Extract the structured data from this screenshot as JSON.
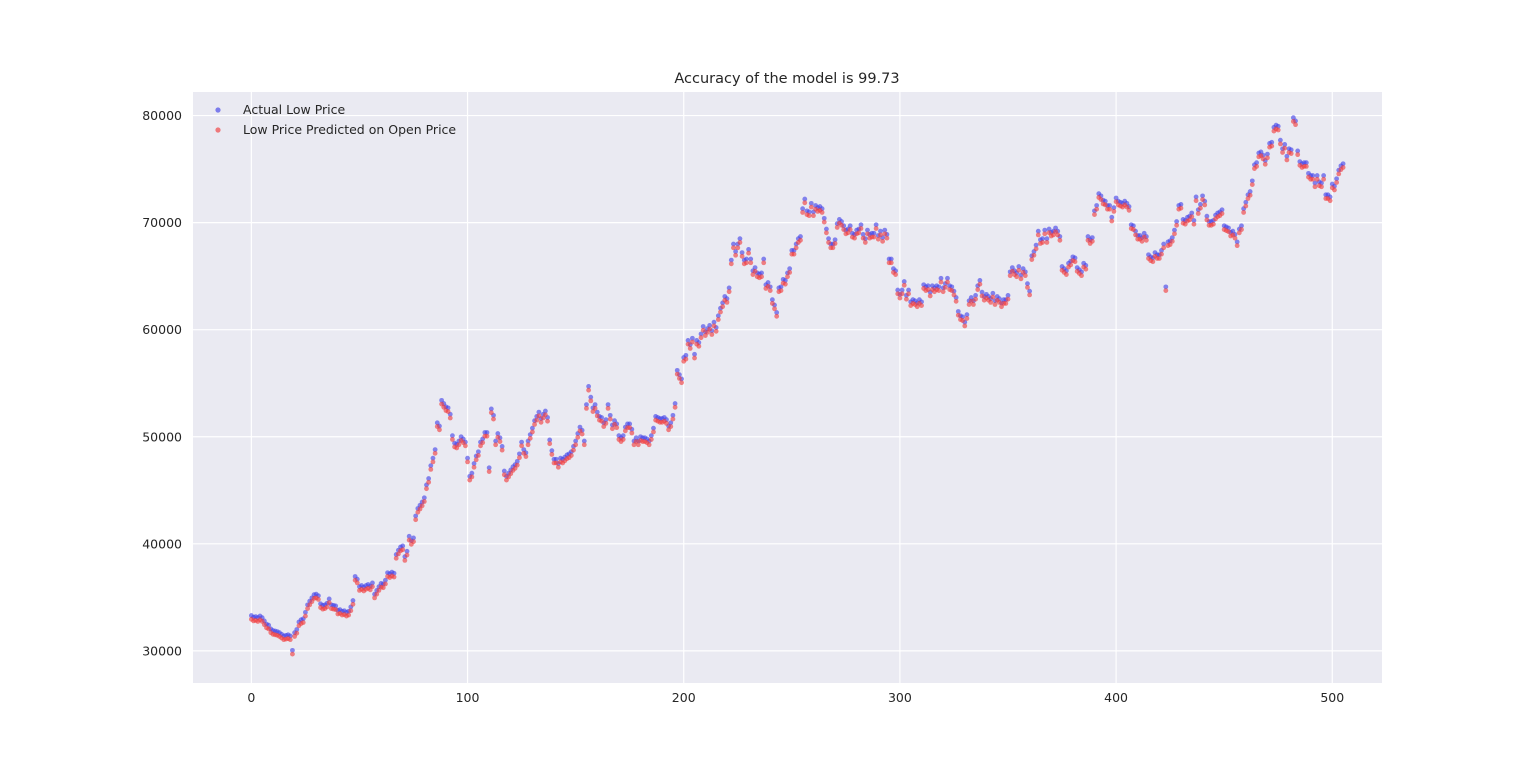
{
  "chart_data": {
    "type": "scatter",
    "title": "Accuracy of the model is 99.73",
    "xlabel": "",
    "ylabel": "",
    "xlim": [
      -27,
      523
    ],
    "ylim": [
      27000,
      82200
    ],
    "x_ticks": [
      0,
      100,
      200,
      300,
      400,
      500
    ],
    "y_ticks": [
      30000,
      40000,
      50000,
      60000,
      70000,
      80000
    ],
    "grid": true,
    "legend_position": "top-left",
    "style": {
      "background": "#eaeaf2",
      "grid_color": "#ffffff",
      "actual_color": "#4040e8",
      "predicted_color": "#f03a3a"
    },
    "series": [
      {
        "name": "Actual Low Price",
        "x_step": 1,
        "values": [
          33300,
          33150,
          33200,
          33100,
          33250,
          33100,
          32800,
          32500,
          32400,
          32050,
          31900,
          31850,
          31800,
          31700,
          31550,
          31400,
          31450,
          31500,
          31400,
          30050,
          31700,
          32000,
          32700,
          32900,
          33000,
          33600,
          34300,
          34650,
          34950,
          35250,
          35300,
          35150,
          34400,
          34250,
          34300,
          34450,
          34850,
          34300,
          34250,
          34200,
          33800,
          33850,
          33700,
          33750,
          33600,
          33700,
          34100,
          34700,
          36950,
          36700,
          36000,
          36100,
          35950,
          36100,
          36200,
          36050,
          36350,
          35300,
          35650,
          36000,
          36300,
          36250,
          36600,
          37300,
          37200,
          37350,
          37250,
          39000,
          39400,
          39700,
          39800,
          38800,
          39300,
          40700,
          40300,
          40550,
          42600,
          43300,
          43600,
          43900,
          44300,
          45500,
          46100,
          47300,
          48000,
          48800,
          51300,
          51000,
          53400,
          53100,
          52800,
          52700,
          52100,
          50100,
          49400,
          49300,
          49600,
          50000,
          49800,
          49500,
          48000,
          46300,
          46600,
          47500,
          48200,
          48600,
          49500,
          49800,
          50400,
          50400,
          47100,
          52600,
          52000,
          49600,
          50300,
          49900,
          49100,
          46800,
          46300,
          46600,
          46900,
          47200,
          47400,
          47700,
          48400,
          49500,
          48800,
          48500,
          49600,
          50200,
          50800,
          51500,
          51900,
          52300,
          51700,
          52100,
          52400,
          51800,
          49700,
          48700,
          47900,
          47900,
          47500,
          48000,
          47900,
          48100,
          48300,
          48400,
          48600,
          49100,
          49600,
          50300,
          50900,
          50600,
          49600,
          53000,
          54700,
          53700,
          52700,
          53000,
          52300,
          51900,
          51800,
          51300,
          51600,
          53000,
          52000,
          51100,
          51500,
          51200,
          50100,
          49900,
          50100,
          50900,
          51200,
          51200,
          50700,
          49600,
          49900,
          49600,
          50000,
          49900,
          49900,
          49800,
          49600,
          50100,
          50800,
          51900,
          51800,
          51700,
          51700,
          51800,
          51600,
          51000,
          51300,
          52000,
          53100,
          56200,
          55800,
          55400,
          57400,
          57600,
          59000,
          58600,
          59200,
          57700,
          59000,
          58800,
          59600,
          60300,
          59800,
          60100,
          60400,
          59900,
          60700,
          60200,
          61300,
          62000,
          62500,
          63100,
          62900,
          63900,
          66500,
          68000,
          67300,
          68000,
          68500,
          67200,
          66500,
          66600,
          67500,
          66600,
          65500,
          65800,
          65300,
          65200,
          65300,
          66600,
          64200,
          64400,
          64000,
          62800,
          62300,
          61600,
          63900,
          64000,
          64700,
          64600,
          65300,
          65700,
          67400,
          67400,
          68000,
          68500,
          68700,
          71300,
          72200,
          71100,
          71000,
          71800,
          71000,
          71600,
          71400,
          71500,
          71300,
          70400,
          69400,
          68500,
          68000,
          68000,
          68400,
          69900,
          70300,
          70100,
          69700,
          69300,
          69400,
          69700,
          69000,
          68900,
          69300,
          69400,
          69800,
          68900,
          68500,
          69300,
          68900,
          69000,
          69000,
          69800,
          68800,
          69200,
          68600,
          69300,
          68900,
          66600,
          66600,
          65700,
          65500,
          63700,
          63300,
          63700,
          64500,
          63200,
          63700,
          62600,
          62800,
          62700,
          62500,
          62800,
          62600,
          64200,
          64000,
          64100,
          63500,
          64100,
          63900,
          64100,
          64000,
          64800,
          63900,
          64300,
          64800,
          64100,
          64000,
          63600,
          63000,
          61700,
          61300,
          61200,
          60700,
          61400,
          62700,
          63000,
          62700,
          63200,
          64100,
          64600,
          63500,
          63100,
          63300,
          63100,
          62900,
          63400,
          62700,
          63100,
          62900,
          62500,
          62800,
          62800,
          63200,
          65400,
          65800,
          65500,
          65300,
          65900,
          65100,
          65700,
          65400,
          64300,
          63600,
          66900,
          67300,
          67900,
          69200,
          68400,
          68500,
          69300,
          68500,
          69400,
          69100,
          69200,
          69500,
          69200,
          68700,
          65900,
          65700,
          65500,
          66200,
          66400,
          66800,
          66700,
          65800,
          65600,
          65400,
          66200,
          66000,
          68700,
          68400,
          68600,
          71100,
          71600,
          72700,
          72500,
          72100,
          72000,
          71600,
          71600,
          70500,
          71400,
          72300,
          72000,
          71900,
          71800,
          72000,
          71800,
          71500,
          69800,
          69700,
          69200,
          68800,
          68800,
          68600,
          69000,
          68700,
          67000,
          66800,
          66700,
          67200,
          67000,
          67000,
          67400,
          68000,
          64000,
          68200,
          68300,
          68600,
          69300,
          70100,
          71600,
          71700,
          70300,
          70200,
          70500,
          70600,
          70900,
          70200,
          72400,
          71200,
          71700,
          72500,
          72000,
          70600,
          70100,
          70100,
          70200,
          70700,
          70900,
          71000,
          71200,
          69700,
          69600,
          69500,
          69100,
          69200,
          68900,
          68200,
          69400,
          69700,
          71300,
          71900,
          72600,
          72900,
          73900,
          75400,
          75600,
          76500,
          76600,
          76300,
          75800,
          76400,
          77400,
          77500,
          78900,
          79100,
          79000,
          77700,
          76900,
          77300,
          76200,
          76900,
          76800,
          79800,
          79500,
          76700,
          75700,
          75500,
          75600,
          75600,
          74600,
          74400,
          74400,
          73700,
          74400,
          73800,
          73700,
          74400,
          72600,
          72600,
          72400,
          73600,
          73400,
          74100,
          74900,
          75300,
          75500
        ]
      },
      {
        "name": "Low Price Predicted on Open Price",
        "x_step": 1,
        "values": [
          32950,
          32800,
          32850,
          32750,
          32900,
          32750,
          32450,
          32150,
          32050,
          31700,
          31550,
          31500,
          31450,
          31350,
          31200,
          31050,
          31100,
          31150,
          31050,
          29700,
          31350,
          31650,
          32350,
          32550,
          32650,
          33250,
          33950,
          34300,
          34600,
          34900,
          34950,
          34800,
          34050,
          33900,
          33950,
          34100,
          34500,
          33950,
          33900,
          33850,
          33450,
          33500,
          33350,
          33400,
          33250,
          33350,
          33750,
          34350,
          36600,
          36350,
          35650,
          35750,
          35600,
          35750,
          35850,
          35700,
          36000,
          34950,
          35300,
          35650,
          35950,
          35900,
          36250,
          36950,
          36850,
          37000,
          36900,
          38650,
          39050,
          39350,
          39450,
          38450,
          38950,
          40350,
          39950,
          40200,
          42250,
          42950,
          43250,
          43550,
          43950,
          45150,
          45750,
          46950,
          47650,
          48450,
          50950,
          50650,
          53050,
          52750,
          52450,
          52350,
          51750,
          49750,
          49050,
          48950,
          49250,
          49650,
          49450,
          49150,
          47650,
          45950,
          46250,
          47150,
          47850,
          48250,
          49150,
          49450,
          50050,
          50050,
          46750,
          52250,
          51650,
          49250,
          49950,
          49550,
          48750,
          46450,
          45950,
          46250,
          46550,
          46850,
          47050,
          47350,
          48050,
          49150,
          48450,
          48150,
          49250,
          49850,
          50450,
          51150,
          51550,
          51950,
          51350,
          51750,
          52050,
          51450,
          49350,
          48350,
          47550,
          47550,
          47150,
          47650,
          47550,
          47750,
          47950,
          48050,
          48250,
          48750,
          49250,
          49950,
          50550,
          50250,
          49250,
          52650,
          54350,
          53350,
          52350,
          52650,
          51950,
          51550,
          51450,
          50950,
          51250,
          52650,
          51650,
          50750,
          51150,
          50850,
          49750,
          49550,
          49750,
          50550,
          50850,
          50850,
          50350,
          49250,
          49550,
          49250,
          49650,
          49550,
          49550,
          49450,
          49250,
          49750,
          50450,
          51550,
          51450,
          51350,
          51350,
          51450,
          51250,
          50650,
          50950,
          51650,
          52750,
          55850,
          55450,
          55050,
          57050,
          57250,
          58650,
          58250,
          58850,
          57350,
          58650,
          58450,
          59250,
          59950,
          59450,
          59750,
          60050,
          59550,
          60350,
          59850,
          60950,
          61650,
          62150,
          62750,
          62550,
          63550,
          66150,
          67650,
          66950,
          67650,
          68150,
          66850,
          66150,
          66250,
          67150,
          66250,
          65150,
          65450,
          64950,
          64850,
          64950,
          66250,
          63850,
          64050,
          63650,
          62450,
          61950,
          61250,
          63550,
          63650,
          64350,
          64250,
          64950,
          65350,
          67050,
          67050,
          67650,
          68150,
          68350,
          70950,
          71850,
          70750,
          70650,
          71450,
          70650,
          71250,
          71050,
          71150,
          70950,
          70050,
          69050,
          68150,
          67650,
          67650,
          68050,
          69550,
          69950,
          69750,
          69350,
          68950,
          69050,
          69350,
          68650,
          68550,
          68950,
          69050,
          69450,
          68550,
          68150,
          68950,
          68550,
          68650,
          68650,
          69450,
          68450,
          68850,
          68250,
          68950,
          68550,
          66250,
          66250,
          65350,
          65150,
          63350,
          62950,
          63350,
          64150,
          62850,
          63350,
          62250,
          62450,
          62350,
          62150,
          62450,
          62250,
          63850,
          63650,
          63750,
          63150,
          63750,
          63550,
          63750,
          63650,
          64450,
          63550,
          63950,
          64450,
          63750,
          63650,
          63250,
          62650,
          61350,
          60950,
          60850,
          60350,
          61050,
          62350,
          62650,
          62350,
          62850,
          63750,
          64250,
          63150,
          62750,
          62950,
          62750,
          62550,
          63050,
          62350,
          62750,
          62550,
          62150,
          62450,
          62450,
          62850,
          65050,
          65450,
          65150,
          64950,
          65550,
          64750,
          65350,
          65050,
          63950,
          63250,
          66550,
          66950,
          67550,
          68850,
          68050,
          68150,
          68950,
          68150,
          69050,
          68750,
          68850,
          69150,
          68850,
          68350,
          65550,
          65350,
          65150,
          65850,
          66050,
          66450,
          66350,
          65450,
          65250,
          65050,
          65850,
          65650,
          68350,
          68050,
          68250,
          70750,
          71250,
          72350,
          72150,
          71750,
          71650,
          71250,
          71250,
          70150,
          71050,
          71950,
          71650,
          71550,
          71450,
          71650,
          71450,
          71150,
          69450,
          69350,
          68850,
          68450,
          68450,
          68250,
          68650,
          68350,
          66650,
          66450,
          66350,
          66850,
          66650,
          66650,
          67050,
          67650,
          63650,
          67850,
          67950,
          68250,
          68950,
          69750,
          71250,
          71350,
          69950,
          69850,
          70150,
          70250,
          70550,
          69850,
          72050,
          70850,
          71350,
          72150,
          71650,
          70250,
          69750,
          69750,
          69850,
          70350,
          70550,
          70650,
          70850,
          69350,
          69250,
          69150,
          68750,
          68850,
          68550,
          67850,
          69050,
          69350,
          70950,
          71550,
          72250,
          72550,
          73550,
          75050,
          75250,
          76150,
          76250,
          75950,
          75450,
          76050,
          77050,
          77150,
          78550,
          78750,
          78650,
          77350,
          76550,
          76950,
          75850,
          76550,
          76450,
          79450,
          79150,
          76350,
          75350,
          75150,
          75250,
          75250,
          74250,
          74050,
          74050,
          73350,
          74050,
          73450,
          73350,
          74050,
          72250,
          72250,
          72050,
          73250,
          73050,
          73750,
          74550,
          74950,
          75150
        ]
      }
    ]
  }
}
